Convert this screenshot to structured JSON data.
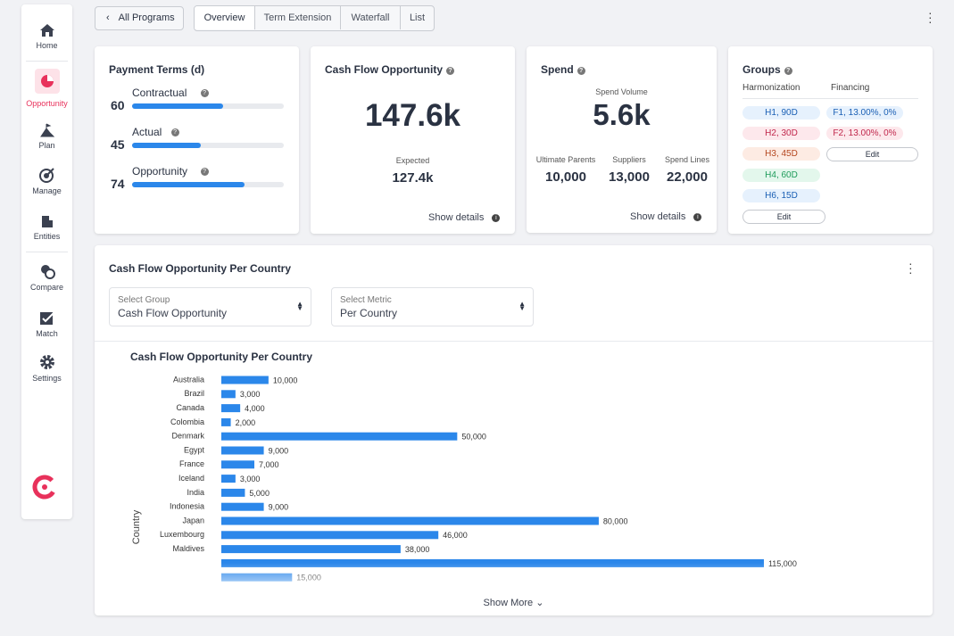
{
  "nav": {
    "items": [
      "Home",
      "Opportunity",
      "Plan",
      "Manage",
      "Entities",
      "Compare",
      "Match",
      "Settings"
    ],
    "active": 1
  },
  "topbar": {
    "back": "All Programs",
    "tabs": [
      "Overview",
      "Term Extension",
      "Waterfall",
      "List"
    ],
    "active_tab": 0
  },
  "payment_terms": {
    "title": "Payment Terms (d)",
    "rows": [
      {
        "label": "Contractual",
        "value": 60
      },
      {
        "label": "Actual",
        "value": 45
      },
      {
        "label": "Opportunity",
        "value": 74
      }
    ]
  },
  "cash_flow": {
    "title": "Cash Flow Opportunity",
    "value": "147.6k",
    "expected_label": "Expected",
    "expected": "127.4k",
    "details": "Show details"
  },
  "spend": {
    "title": "Spend",
    "volume_label": "Spend Volume",
    "volume": "5.6k",
    "stats": [
      {
        "label": "Ultimate Parents",
        "value": "10,000"
      },
      {
        "label": "Suppliers",
        "value": "13,000"
      },
      {
        "label": "Spend Lines",
        "value": "22,000"
      }
    ],
    "details": "Show details"
  },
  "groups": {
    "title": "Groups",
    "harmonization_label": "Harmonization",
    "financing_label": "Financing",
    "harmonization": [
      "H1, 90D",
      "H2, 30D",
      "H3, 45D",
      "H4, 60D",
      "H6, 15D"
    ],
    "financing": [
      "F1, 13.00%, 0%",
      "F2,  13.00%, 0%"
    ],
    "edit": "Edit"
  },
  "country_card": {
    "title": "Cash Flow Opportunity Per Country",
    "group_select": {
      "label": "Select Group",
      "value": "Cash Flow Opportunity"
    },
    "metric_select": {
      "label": "Select Metric",
      "value": "Per Country"
    },
    "show_more": "Show More"
  },
  "chart_data": {
    "type": "bar",
    "orientation": "horizontal",
    "title": "Cash Flow Opportunity Per Country",
    "y_label": "Country",
    "color": "#2b87ea",
    "categories": [
      "Australia",
      "Brazil",
      "Canada",
      "Colombia",
      "Denmark",
      "Egypt",
      "France",
      "Iceland",
      "India",
      "Indonesia",
      "Japan",
      "Luxembourg",
      "Maldives",
      null,
      null
    ],
    "values": [
      10000,
      3000,
      4000,
      2000,
      50000,
      9000,
      7000,
      3000,
      5000,
      9000,
      80000,
      46000,
      38000,
      115000,
      15000
    ],
    "value_labels": [
      "10,000",
      "3,000",
      "4,000",
      "2,000",
      "50,000",
      "9,000",
      "7,000",
      "3,000",
      "5,000",
      "9,000",
      "80,000",
      "46,000",
      "38,000",
      "115,000",
      "15,000"
    ],
    "xlim": [
      0,
      150000
    ]
  }
}
